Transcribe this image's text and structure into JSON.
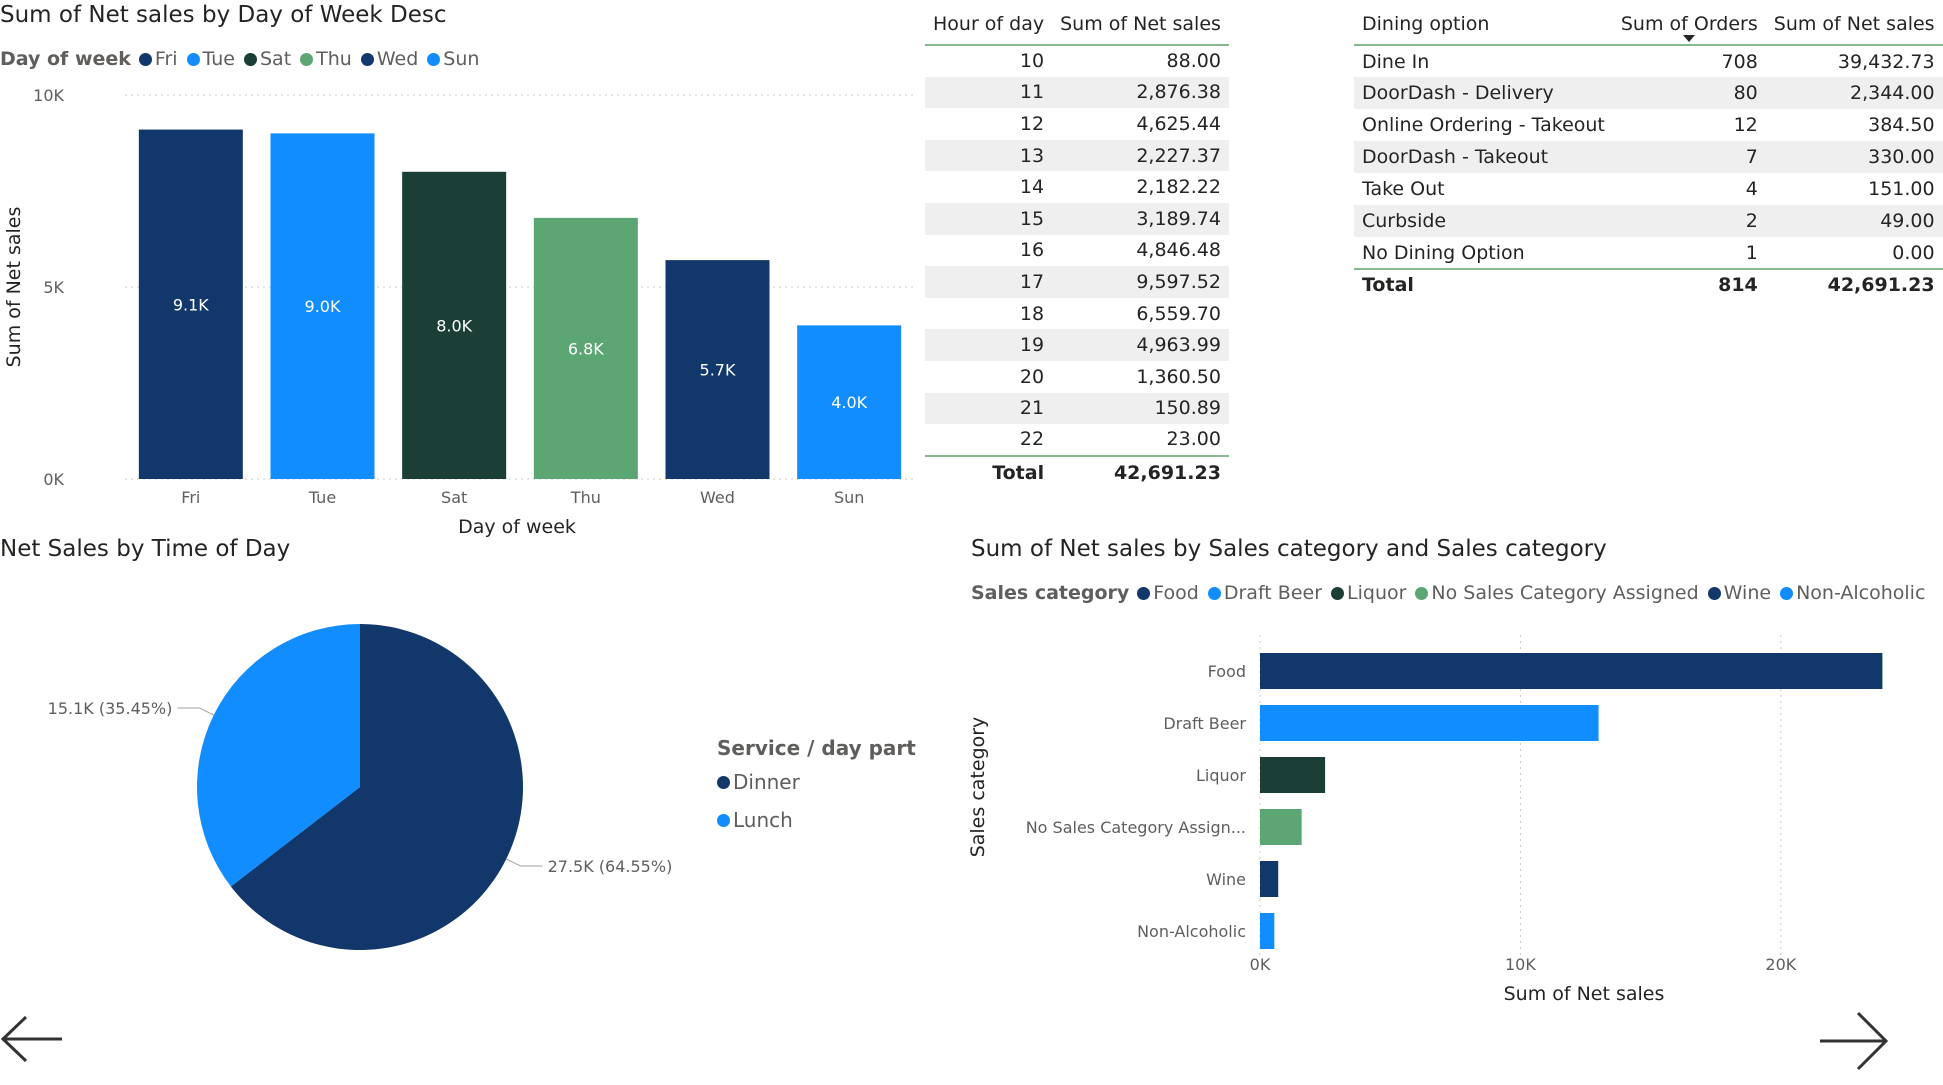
{
  "colors": {
    "dark_blue": "#12386b",
    "blue": "#118dff",
    "dark_green": "#1b3f36",
    "green": "#5ba672",
    "table_rule": "#86b98e",
    "band": "#efefef"
  },
  "bar_chart": {
    "title": "Sum of Net sales by Day of Week Desc",
    "legend_title": "Day of week",
    "legend": [
      "Fri",
      "Tue",
      "Sat",
      "Thu",
      "Wed",
      "Sun"
    ],
    "y_ticks": [
      "10K",
      "5K",
      "0K"
    ],
    "ylabel": "Sum of Net sales",
    "xlabel": "Day of week"
  },
  "hour_table": {
    "headers": [
      "Hour of day",
      "Sum of Net sales"
    ],
    "rows": [
      [
        "10",
        "88.00"
      ],
      [
        "11",
        "2,876.38"
      ],
      [
        "12",
        "4,625.44"
      ],
      [
        "13",
        "2,227.37"
      ],
      [
        "14",
        "2,182.22"
      ],
      [
        "15",
        "3,189.74"
      ],
      [
        "16",
        "4,846.48"
      ],
      [
        "17",
        "9,597.52"
      ],
      [
        "18",
        "6,559.70"
      ],
      [
        "19",
        "4,963.99"
      ],
      [
        "20",
        "1,360.50"
      ],
      [
        "21",
        "150.89"
      ],
      [
        "22",
        "23.00"
      ]
    ],
    "total_label": "Total",
    "total_value": "42,691.23"
  },
  "dining_table": {
    "headers": [
      "Dining option",
      "Sum of Orders",
      "Sum of Net sales"
    ],
    "rows": [
      [
        "Dine In",
        "708",
        "39,432.73"
      ],
      [
        "DoorDash - Delivery",
        "80",
        "2,344.00"
      ],
      [
        "Online Ordering - Takeout",
        "12",
        "384.50"
      ],
      [
        "DoorDash - Takeout",
        "7",
        "330.00"
      ],
      [
        "Take Out",
        "4",
        "151.00"
      ],
      [
        "Curbside",
        "2",
        "49.00"
      ],
      [
        "No Dining Option",
        "1",
        "0.00"
      ]
    ],
    "total_label": "Total",
    "total_orders": "814",
    "total_sales": "42,691.23"
  },
  "pie_chart": {
    "title": "Net Sales by Time of Day",
    "legend_title": "Service / day part",
    "legend": [
      "Dinner",
      "Lunch"
    ]
  },
  "hbar_chart": {
    "title": "Sum of Net sales by Sales category and Sales category",
    "legend_title": "Sales category",
    "legend": [
      "Food",
      "Draft Beer",
      "Liquor",
      "No Sales Category Assigned",
      "Wine",
      "Non-Alcoholic"
    ],
    "ylabel": "Sales category",
    "xlabel": "Sum of Net sales",
    "x_ticks": [
      "0K",
      "10K",
      "20K"
    ]
  },
  "chart_data": [
    {
      "type": "bar",
      "title": "Sum of Net sales by Day of Week Desc",
      "xlabel": "Day of week",
      "ylabel": "Sum of Net sales",
      "ylim": [
        0,
        10000
      ],
      "grid": true,
      "legend_placement": "top-left",
      "categories": [
        "Fri",
        "Tue",
        "Sat",
        "Thu",
        "Wed",
        "Sun"
      ],
      "values": [
        9100,
        9000,
        8000,
        6800,
        5700,
        4000
      ],
      "data_labels": [
        "9.1K",
        "9.0K",
        "8.0K",
        "6.8K",
        "5.7K",
        "4.0K"
      ],
      "colors": [
        "#12386b",
        "#118dff",
        "#1b3f36",
        "#5ba672",
        "#12386b",
        "#118dff"
      ]
    },
    {
      "type": "pie",
      "title": "Net Sales by Time of Day",
      "legend_placement": "right",
      "categories": [
        "Dinner",
        "Lunch"
      ],
      "values": [
        27500,
        15100
      ],
      "percents": [
        64.55,
        35.45
      ],
      "data_labels": [
        "27.5K (64.55%)",
        "15.1K (35.45%)"
      ],
      "colors": [
        "#12386b",
        "#118dff"
      ]
    },
    {
      "type": "bar",
      "orientation": "horizontal",
      "title": "Sum of Net sales by Sales category and Sales category",
      "xlabel": "Sum of Net sales",
      "ylabel": "Sales category",
      "xlim": [
        0,
        24000
      ],
      "grid": true,
      "legend_placement": "top-left",
      "categories": [
        "Food",
        "Draft Beer",
        "Liquor",
        "No Sales Category Assign...",
        "Wine",
        "Non-Alcoholic"
      ],
      "values": [
        23900,
        13000,
        2500,
        1600,
        700,
        550
      ],
      "colors": [
        "#12386b",
        "#118dff",
        "#1b3f36",
        "#5ba672",
        "#12386b",
        "#118dff"
      ]
    }
  ]
}
